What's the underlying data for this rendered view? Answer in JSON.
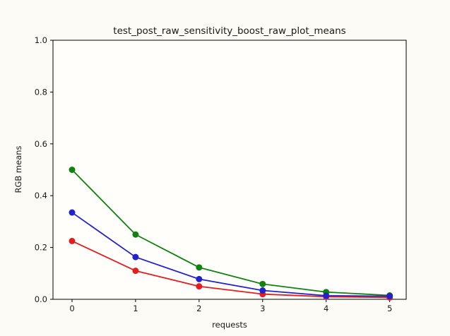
{
  "chart_data": {
    "type": "line",
    "title": "test_post_raw_sensitivity_boost_raw_plot_means",
    "xlabel": "requests",
    "ylabel": "RGB means",
    "x": [
      0,
      1,
      2,
      3,
      4,
      5
    ],
    "series": [
      {
        "name": "red",
        "color": "#e02020",
        "marker": "circle",
        "values": [
          0.225,
          0.11,
          0.05,
          0.02,
          0.01,
          0.007
        ]
      },
      {
        "name": "green",
        "color": "#108210",
        "marker": "circle",
        "values": [
          0.5,
          0.25,
          0.123,
          0.059,
          0.028,
          0.015
        ]
      },
      {
        "name": "blue",
        "color": "#2222cc",
        "marker": "circle",
        "values": [
          0.335,
          0.163,
          0.078,
          0.034,
          0.014,
          0.012
        ]
      }
    ],
    "x_ticks": [
      "0",
      "1",
      "2",
      "3",
      "4",
      "5"
    ],
    "y_ticks": [
      "0.0",
      "0.2",
      "0.4",
      "0.6",
      "0.8",
      "1.0"
    ],
    "xlim": [
      -0.3,
      5.26
    ],
    "ylim": [
      0.0,
      1.0
    ],
    "grid": false,
    "legend": "none",
    "colors": {
      "figure_bg": "#fcfbf6",
      "axes_bg": "#fffefb",
      "axis_line": "#000000",
      "text": "#1a1a1a"
    }
  }
}
